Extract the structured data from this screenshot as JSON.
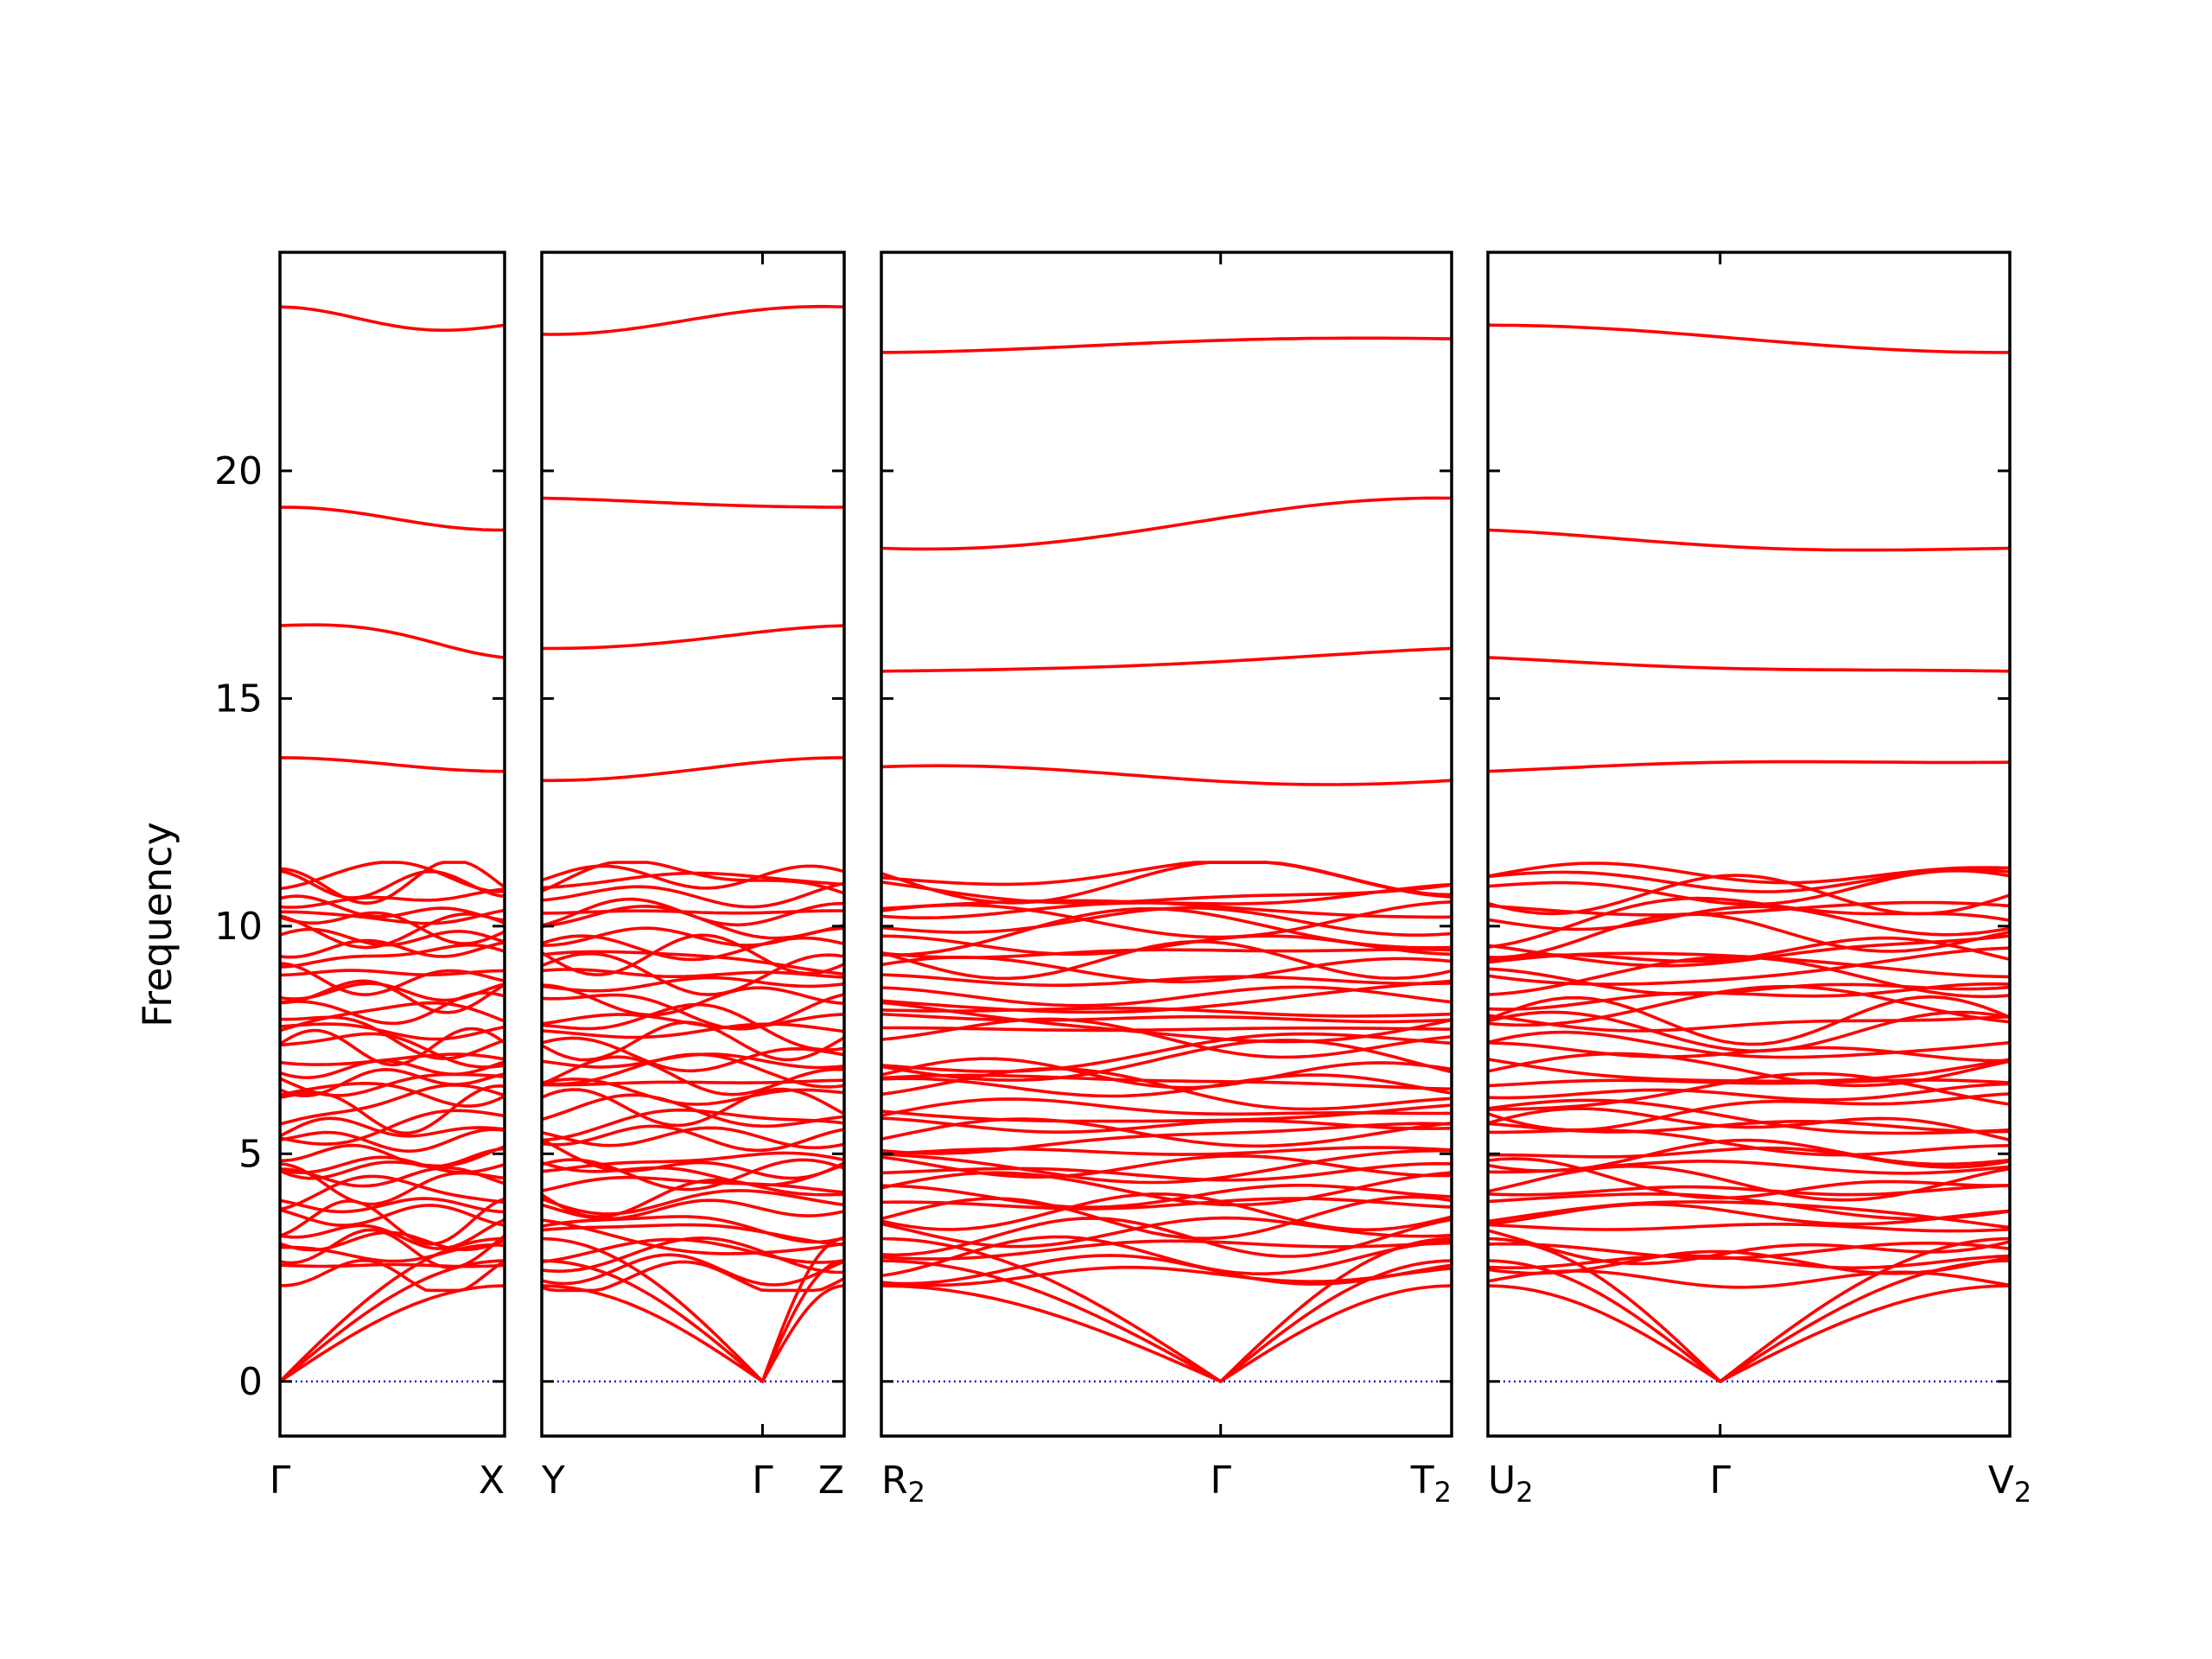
{
  "chart_data": {
    "type": "line",
    "title": "",
    "xlabel": "",
    "ylabel": "Frequency",
    "ylim": [
      -1.2,
      24.8
    ],
    "yticks": [
      0,
      5,
      10,
      15,
      20
    ],
    "grid": false,
    "colors": {
      "bands": "#ff0000",
      "zero": "#0000cc",
      "frame": "#000000"
    },
    "panels": [
      {
        "start_label": "Γ",
        "end_label": "X",
        "sym_tick": null,
        "sym_label": "",
        "optical_start": [
          23.6,
          19.2,
          16.6,
          13.7
        ],
        "optical_end": [
          23.2,
          18.7,
          15.9,
          13.4
        ]
      },
      {
        "start_label": "Y",
        "end_label": "Z",
        "sym_tick": 0.73,
        "sym_label": "Γ",
        "optical_start": [
          23.0,
          19.4,
          16.1,
          13.2
        ],
        "optical_end": [
          23.6,
          19.2,
          16.6,
          13.7
        ]
      },
      {
        "start_label": "R",
        "start_sub": "2",
        "end_label": "T",
        "end_sub": "2",
        "sym_tick": 0.595,
        "sym_label": "Γ",
        "optical_start": [
          22.6,
          18.3,
          15.6,
          13.5
        ],
        "optical_end": [
          22.9,
          19.4,
          16.1,
          13.2
        ]
      },
      {
        "start_label": "U",
        "start_sub": "2",
        "end_label": "V",
        "end_sub": "2",
        "sym_tick": 0.445,
        "sym_label": "Γ",
        "optical_start": [
          23.2,
          18.7,
          15.9,
          13.4
        ],
        "optical_end": [
          22.6,
          18.3,
          15.6,
          13.6
        ]
      }
    ],
    "dense_region": [
      2.0,
      11.4
    ],
    "gap_regions": [
      [
        11.4,
        13.2
      ],
      [
        13.8,
        15.6
      ],
      [
        16.6,
        18.3
      ],
      [
        19.5,
        22.6
      ]
    ]
  }
}
